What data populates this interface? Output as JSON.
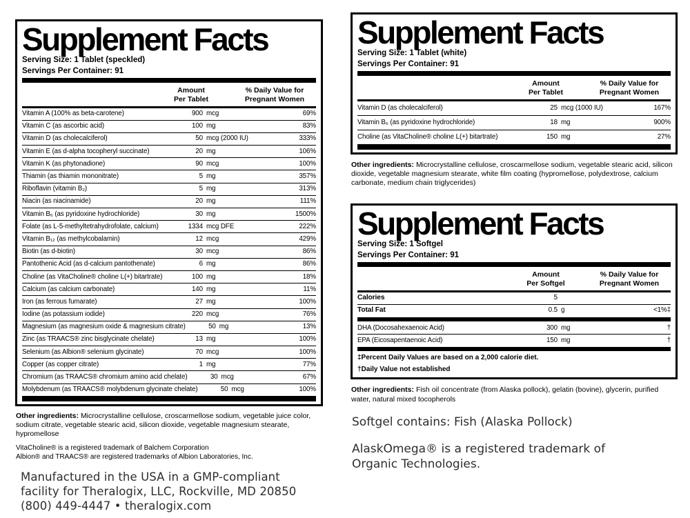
{
  "panels": [
    {
      "title": "Supplement Facts",
      "serving_size": "Serving Size: 1 Tablet (speckled)",
      "servings_per_container": "Servings Per Container: 91",
      "amount_header": [
        "Amount",
        "Per Tablet"
      ],
      "dv_header": [
        "% Daily Value for",
        "Pregnant Women"
      ],
      "rows": [
        {
          "name": "Vitamin A (100% as beta-carotene)",
          "amount": "900",
          "unit": "mcg",
          "dv": "69%"
        },
        {
          "name": "Vitamin C (as ascorbic acid)",
          "amount": "100",
          "unit": "mg",
          "dv": "83%"
        },
        {
          "name": "Vitamin D (as cholecalciferol)",
          "amount": "50",
          "unit": "mcg (2000 IU)",
          "dv": "333%"
        },
        {
          "name": "Vitamin E (as d-alpha tocopheryl succinate)",
          "amount": "20",
          "unit": "mg",
          "dv": "106%"
        },
        {
          "name": "Vitamin K (as phytonadione)",
          "amount": "90",
          "unit": "mcg",
          "dv": "100%"
        },
        {
          "name": "Thiamin (as thiamin mononitrate)",
          "amount": "5",
          "unit": "mg",
          "dv": "357%"
        },
        {
          "name": "Riboflavin (vitamin B₂)",
          "amount": "5",
          "unit": "mg",
          "dv": "313%"
        },
        {
          "name": "Niacin (as niacinamide)",
          "amount": "20",
          "unit": "mg",
          "dv": "111%"
        },
        {
          "name": "Vitamin B₆ (as pyridoxine hydrochloride)",
          "amount": "30",
          "unit": "mg",
          "dv": "1500%"
        },
        {
          "name": "Folate (as L-5-methyltetrahydrofolate, calcium)",
          "amount": "1334",
          "unit": "mcg DFE",
          "dv": "222%"
        },
        {
          "name": "Vitamin B₁₂ (as methylcobalamin)",
          "amount": "12",
          "unit": "mcg",
          "dv": "429%"
        },
        {
          "name": "Biotin (as d-biotin)",
          "amount": "30",
          "unit": "mcg",
          "dv": "86%"
        },
        {
          "name": "Pantothenic Acid (as d-calcium pantothenate)",
          "amount": "6",
          "unit": "mg",
          "dv": "86%"
        },
        {
          "name": "Choline (as VitaCholine® choline L(+) bitartrate)",
          "amount": "100",
          "unit": "mg",
          "dv": "18%"
        },
        {
          "name": "Calcium (as calcium carbonate)",
          "amount": "140",
          "unit": "mg",
          "dv": "11%"
        },
        {
          "name": "Iron (as ferrous fumarate)",
          "amount": "27",
          "unit": "mg",
          "dv": "100%"
        },
        {
          "name": "Iodine (as potassium iodide)",
          "amount": "220",
          "unit": "mcg",
          "dv": "76%"
        },
        {
          "name": "Magnesium (as magnesium oxide & magnesium citrate)",
          "amount": "50",
          "unit": "mg",
          "dv": "13%"
        },
        {
          "name": "Zinc (as TRAACS® zinc bisglycinate chelate)",
          "amount": "13",
          "unit": "mg",
          "dv": "100%"
        },
        {
          "name": "Selenium (as Albion® selenium glycinate)",
          "amount": "70",
          "unit": "mcg",
          "dv": "100%"
        },
        {
          "name": "Copper (as copper citrate)",
          "amount": "1",
          "unit": "mg",
          "dv": "77%"
        },
        {
          "name": "Chromium (as TRAACS® chromium amino acid chelate)",
          "amount": "30",
          "unit": "mcg",
          "dv": "67%"
        },
        {
          "name": "Molybdenum (as TRAACS® molybdenum glycinate chelate)",
          "amount": "50",
          "unit": "mcg",
          "dv": "100%"
        }
      ]
    },
    {
      "title": "Supplement Facts",
      "serving_size": "Serving Size: 1 Tablet (white)",
      "servings_per_container": "Servings Per Container: 91",
      "amount_header": [
        "Amount",
        "Per Tablet"
      ],
      "dv_header": [
        "% Daily Value for",
        "Pregnant Women"
      ],
      "rows": [
        {
          "name": "Vitamin D (as cholecalciferol)",
          "amount": "25",
          "unit": "mcg (1000 IU)",
          "dv": "167%"
        },
        {
          "name": "Vitamin B₆ (as pyridoxine hydrochloride)",
          "amount": "18",
          "unit": "mg",
          "dv": "900%"
        },
        {
          "name": "Choline (as VitaCholine® choline L(+) bitartrate)",
          "amount": "150",
          "unit": "mg",
          "dv": "27%"
        }
      ],
      "other_ingredients_lead": "Other ingredients:",
      "other_ingredients_text": "Microcrystalline cellulose, croscarmellose sodium, vegetable stearic acid, silicon dioxide, vegetable magnesium stearate, white film coating (hypromellose, polydextrose, calcium carbonate, medium chain triglycerides)"
    },
    {
      "title": "Supplement Facts",
      "serving_size": "Serving Size: 1 Softgel",
      "servings_per_container": "Servings Per Container: 91",
      "amount_header": [
        "Amount",
        "Per Softgel"
      ],
      "dv_header": [
        "% Daily Value for",
        "Pregnant Women"
      ],
      "rows_top": [
        {
          "name": "Calories",
          "amount": "5",
          "unit": "",
          "dv": "",
          "bold": true
        },
        {
          "name": "Total Fat",
          "amount": "0.5",
          "unit": "g",
          "dv": "<1%‡",
          "bold": true
        }
      ],
      "rows_main": [
        {
          "name": "DHA (Docosahexaenoic Acid)",
          "amount": "300",
          "unit": "mg",
          "dv": "†"
        },
        {
          "name": "EPA (Eicosapentaenoic Acid)",
          "amount": "150",
          "unit": "mg",
          "dv": "†"
        }
      ],
      "footnotes": [
        "‡Percent Daily Values are based on a 2,000 calorie diet.",
        "†Daily Value not established"
      ],
      "other_ingredients_lead": "Other ingredients:",
      "other_ingredients_text": "Fish oil concentrate (from Alaska pollock), gelatin (bovine), glycerin, purified water, natural mixed tocopherols"
    }
  ],
  "left_footer": {
    "other_ingredients_lead": "Other ingredients:",
    "other_ingredients_text": "Microcrystalline cellulose, croscarmellose sodium, vegetable juice color, sodium citrate, vegetable stearic acid, silicon dioxide, vegetable magnesium stearate, hypromellose",
    "trademark_line1": "VitaCholine® is a registered trademark of Balchem Corporation",
    "trademark_line2": "Albion® and TRAACS® are registered trademarks of Albion Laboratories, Inc.",
    "manufactured_lines": [
      "Manufactured in the USA in a GMP-compliant",
      "facility for Theralogix, LLC, Rockville, MD 20850",
      "(800) 449-4447 • theralogix.com"
    ]
  },
  "right_footer": {
    "softgel_contains": "Softgel contains: Fish (Alaska Pollock)",
    "alaskomega_lines": [
      "AlaskOmega® is a registered trademark of",
      "Organic Technologies."
    ]
  }
}
